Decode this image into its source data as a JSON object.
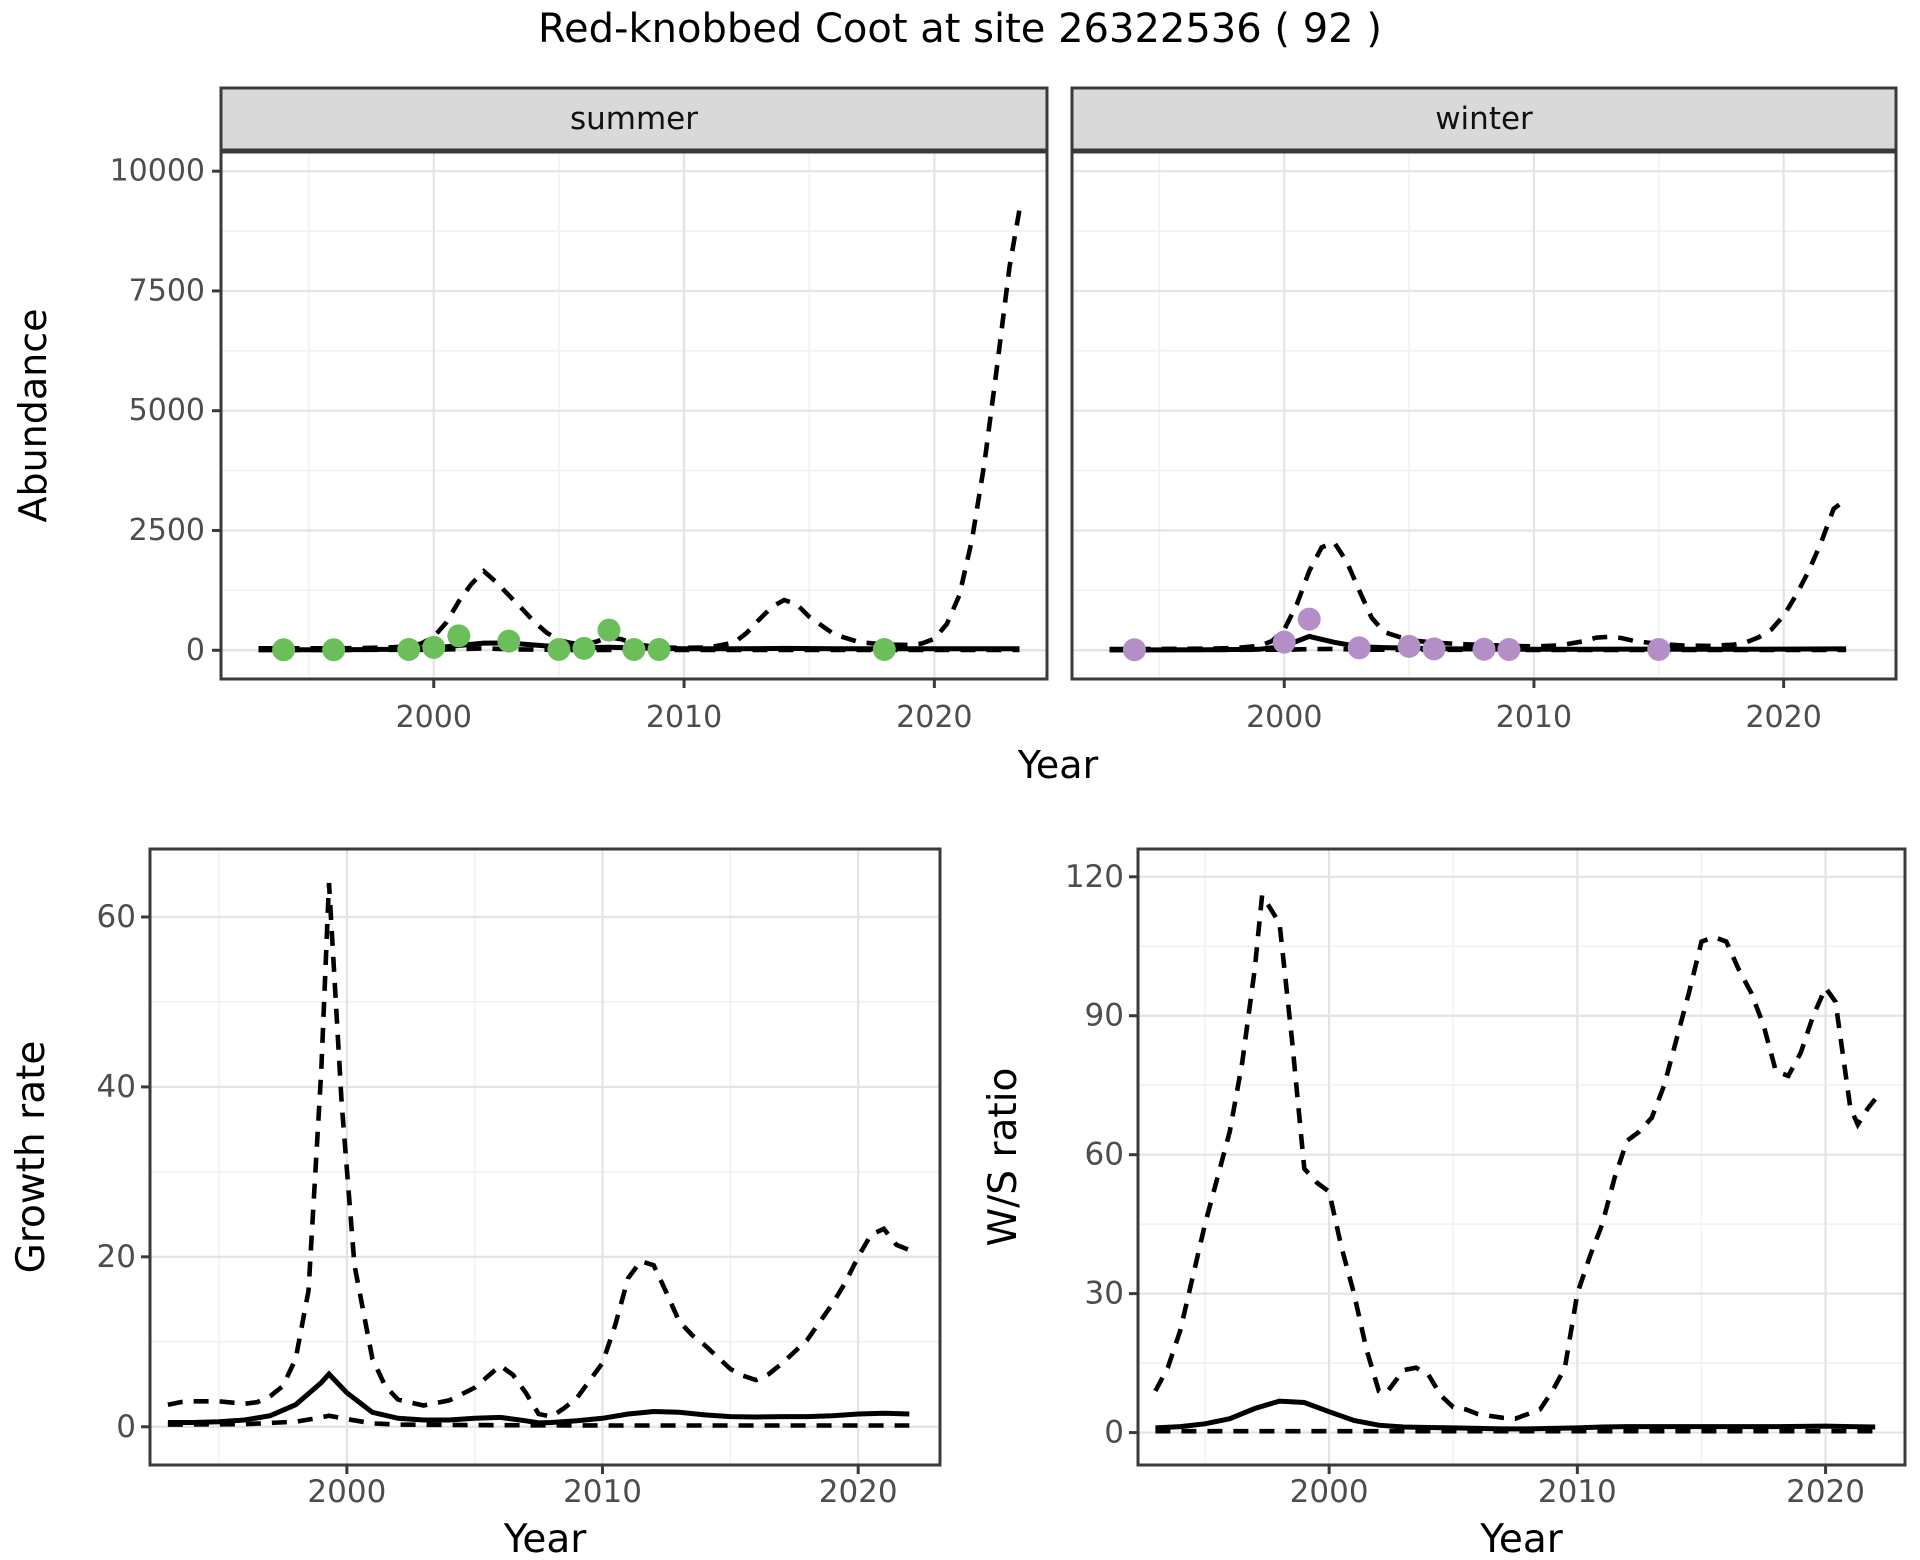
{
  "title": "Red-knobbed Coot at site 26322536 ( 92 )",
  "colors": {
    "summer_point": "#6CBE5A",
    "winter_point": "#B48EC7",
    "line": "#000000",
    "strip_bg": "#D9D9D9",
    "panel_border": "#3A3A3A",
    "grid_major": "#E3E3E3",
    "grid_minor": "#F1F1F1",
    "tick_label": "#4D4D4D",
    "axis_title": "#000000"
  },
  "chart_data": [
    {
      "type": "line",
      "title": "Abundance by season",
      "xlabel": "Year",
      "ylabel": "Abundance",
      "xlim": [
        1991.5,
        2024.5
      ],
      "ylim": [
        -600,
        10400
      ],
      "xticks": [
        2000,
        2010,
        2020
      ],
      "xminor": [
        1995,
        2005,
        2015
      ],
      "yticks": [
        0,
        2500,
        5000,
        7500,
        10000
      ],
      "yminor": [
        1250,
        3750,
        6250,
        8750
      ],
      "grid": true,
      "legend": "none",
      "facets": [
        {
          "label": "summer",
          "series": [
            {
              "name": "upper_ci",
              "style": "dashed",
              "x": [
                1993,
                1994,
                1995,
                1996,
                1997,
                1998,
                1999,
                1999.5,
                2000,
                2000.5,
                2001,
                2001.5,
                2002,
                2002.5,
                2003,
                2003.5,
                2004,
                2004.5,
                2005,
                2005.5,
                2006,
                2006.5,
                2007,
                2007.5,
                2008,
                2009,
                2010,
                2011,
                2012,
                2012.5,
                2013,
                2013.5,
                2014,
                2014.5,
                2015,
                2016,
                2017,
                2018,
                2019,
                2019.5,
                2020,
                2020.5,
                2021,
                2021.5,
                2022,
                2022.5,
                2023,
                2023.4
              ],
              "y": [
                40,
                40,
                40,
                40,
                45,
                55,
                80,
                140,
                280,
                580,
                1020,
                1380,
                1650,
                1420,
                1150,
                880,
                600,
                370,
                210,
                150,
                130,
                180,
                270,
                230,
                130,
                60,
                50,
                60,
                160,
                360,
                640,
                900,
                1050,
                960,
                700,
                330,
                170,
                120,
                110,
                140,
                240,
                550,
                1150,
                2300,
                3900,
                5900,
                8000,
                9200
              ]
            },
            {
              "name": "estimate",
              "style": "solid",
              "x": [
                1993,
                1995,
                1997,
                1999,
                2000,
                2001,
                2002,
                2003,
                2004,
                2005,
                2006,
                2007,
                2008,
                2009,
                2010,
                2012,
                2014,
                2016,
                2018,
                2020,
                2022,
                2023.4
              ],
              "y": [
                12,
                12,
                14,
                22,
                45,
                100,
                150,
                152,
                110,
                70,
                55,
                62,
                50,
                38,
                32,
                30,
                38,
                33,
                30,
                30,
                32,
                33
              ]
            },
            {
              "name": "lower_ci",
              "style": "dashed",
              "x": [
                1993,
                2000,
                2001.5,
                2002,
                2003,
                2005,
                2010,
                2016,
                2023.4
              ],
              "y": [
                5,
                10,
                30,
                38,
                20,
                8,
                5,
                5,
                5
              ]
            }
          ],
          "points": {
            "name": "summer_observations",
            "color_key": "summer_point",
            "x": [
              1994,
              1996,
              1999,
              2000,
              2001,
              2003,
              2005,
              2006,
              2007,
              2008,
              2009,
              2018
            ],
            "y": [
              10,
              10,
              15,
              60,
              300,
              190,
              15,
              40,
              420,
              15,
              15,
              15
            ]
          }
        },
        {
          "label": "winter",
          "series": [
            {
              "name": "upper_ci",
              "style": "dashed",
              "x": [
                1993,
                1994,
                1995,
                1996,
                1997,
                1998,
                1999,
                1999.5,
                2000,
                2000.5,
                2001,
                2001.5,
                2002,
                2002.5,
                2003,
                2003.5,
                2004,
                2005,
                2006,
                2007,
                2008,
                2009,
                2010,
                2011,
                2012,
                2012.5,
                2013,
                2013.5,
                2014,
                2015,
                2016,
                2017,
                2018,
                2018.5,
                2019,
                2019.5,
                2020,
                2020.5,
                2021,
                2021.5,
                2022,
                2022.5
              ],
              "y": [
                25,
                25,
                28,
                30,
                35,
                45,
                90,
                190,
                430,
                950,
                1650,
                2150,
                2250,
                1850,
                1250,
                680,
                380,
                210,
                160,
                130,
                110,
                90,
                80,
                100,
                190,
                265,
                280,
                255,
                195,
                130,
                100,
                90,
                115,
                165,
                270,
                430,
                720,
                1150,
                1650,
                2250,
                2950,
                3150
              ]
            },
            {
              "name": "estimate",
              "style": "solid",
              "x": [
                1993,
                1995,
                1997,
                1999,
                2000,
                2001,
                2002,
                2003,
                2004,
                2005,
                2006,
                2008,
                2010,
                2012,
                2014,
                2016,
                2018,
                2020,
                2022,
                2022.5
              ],
              "y": [
                8,
                8,
                10,
                20,
                85,
                290,
                165,
                75,
                55,
                45,
                35,
                25,
                20,
                22,
                25,
                22,
                22,
                25,
                28,
                28
              ]
            },
            {
              "name": "lower_ci",
              "style": "dashed",
              "x": [
                1993,
                2000,
                2001,
                2002,
                2003,
                2010,
                2022.5
              ],
              "y": [
                5,
                12,
                25,
                28,
                12,
                5,
                5
              ]
            }
          ],
          "points": {
            "name": "winter_observations",
            "color_key": "winter_point",
            "x": [
              1994,
              2000,
              2001,
              2003,
              2005,
              2006,
              2008,
              2009,
              2015
            ],
            "y": [
              10,
              170,
              650,
              50,
              80,
              30,
              20,
              15,
              15
            ]
          }
        }
      ]
    },
    {
      "type": "line",
      "title": "Growth rate",
      "xlabel": "Year",
      "ylabel": "Growth rate",
      "xlim": [
        1992.3,
        2023.2
      ],
      "ylim": [
        -4.5,
        68
      ],
      "xticks": [
        2000,
        2010,
        2020
      ],
      "xminor": [
        1995,
        2005,
        2015
      ],
      "yticks": [
        0,
        20,
        40,
        60
      ],
      "yminor": [
        10,
        30,
        50
      ],
      "grid": true,
      "legend": "none",
      "series": [
        {
          "name": "upper_ci",
          "style": "dashed",
          "x": [
            1993,
            1993.5,
            1994,
            1995,
            1996,
            1996.5,
            1997,
            1997.5,
            1998,
            1998.5,
            1999,
            1999.3,
            1999.8,
            2000.3,
            2001,
            2001.5,
            2002,
            2003,
            2004,
            2005,
            2005.5,
            2006,
            2006.5,
            2007,
            2007.5,
            2008,
            2008.5,
            2009,
            2010,
            2010.5,
            2011,
            2011.5,
            2012,
            2012.5,
            2013,
            2013.5,
            2014,
            2015,
            2015.5,
            2016,
            2016.5,
            2017,
            2018,
            2019,
            2019.5,
            2020,
            2020.5,
            2021,
            2021.5,
            2022
          ],
          "y": [
            2.6,
            2.9,
            3.0,
            3.0,
            2.7,
            2.9,
            3.6,
            4.8,
            8,
            16,
            42,
            64,
            38,
            19,
            8,
            4.8,
            3.2,
            2.5,
            3.1,
            4.6,
            5.9,
            7.2,
            6.1,
            4.0,
            1.5,
            1.2,
            2.2,
            3.4,
            7.5,
            12,
            17.5,
            19.5,
            19,
            15.8,
            12.4,
            10.8,
            9.6,
            6.8,
            6,
            5.5,
            6.2,
            7.4,
            10.2,
            14.5,
            17,
            20,
            22.6,
            23.3,
            21.4,
            20.8
          ]
        },
        {
          "name": "estimate",
          "style": "solid",
          "x": [
            1993,
            1994,
            1995,
            1996,
            1997,
            1998,
            1999,
            1999.3,
            2000,
            2001,
            2002,
            2003,
            2004,
            2005,
            2006,
            2007,
            2007.5,
            2008,
            2009,
            2010,
            2011,
            2012,
            2013,
            2014,
            2015,
            2016,
            2017,
            2018,
            2019,
            2020,
            2021,
            2022
          ],
          "y": [
            0.5,
            0.5,
            0.6,
            0.8,
            1.3,
            2.6,
            5.2,
            6.2,
            4.0,
            1.7,
            1.0,
            0.8,
            0.8,
            1.0,
            1.1,
            0.7,
            0.45,
            0.5,
            0.7,
            1.0,
            1.5,
            1.8,
            1.7,
            1.4,
            1.2,
            1.15,
            1.2,
            1.2,
            1.3,
            1.5,
            1.6,
            1.5
          ]
        },
        {
          "name": "lower_ci",
          "style": "dashed",
          "x": [
            1993,
            1996,
            1998,
            1999,
            1999.3,
            2000,
            2001,
            2002,
            2005,
            2010,
            2015,
            2020,
            2022
          ],
          "y": [
            0.25,
            0.3,
            0.6,
            1.1,
            1.3,
            0.9,
            0.4,
            0.25,
            0.2,
            0.15,
            0.15,
            0.15,
            0.15
          ]
        }
      ]
    },
    {
      "type": "line",
      "title": "W/S ratio",
      "xlabel": "Year",
      "ylabel": "W/S ratio",
      "xlim": [
        1992.3,
        2023.2
      ],
      "ylim": [
        -7,
        126
      ],
      "xticks": [
        2000,
        2010,
        2020
      ],
      "xminor": [
        1995,
        2005,
        2015
      ],
      "yticks": [
        0,
        30,
        60,
        90,
        120
      ],
      "yminor": [
        15,
        45,
        75,
        105
      ],
      "grid": true,
      "legend": "none",
      "series": [
        {
          "name": "upper_ci",
          "style": "dashed",
          "x": [
            1993,
            1993.5,
            1994,
            1995,
            1996,
            1996.5,
            1997,
            1997.3,
            1998,
            1998.5,
            1999,
            1999.5,
            2000,
            2000.5,
            2001,
            2001.5,
            2002,
            2002.3,
            2003,
            2003.5,
            2004,
            2004.5,
            2005,
            2005.5,
            2006,
            2007,
            2007.5,
            2008,
            2008.5,
            2009,
            2009.5,
            2010,
            2010.5,
            2011,
            2011.5,
            2012,
            2012.5,
            2013,
            2013.5,
            2014,
            2014.5,
            2015,
            2015.5,
            2016,
            2016.5,
            2017,
            2017.5,
            2018,
            2018.5,
            2019,
            2019.5,
            2020,
            2020.4,
            2021,
            2021.3,
            2021.7,
            2022
          ],
          "y": [
            9,
            14,
            22,
            45,
            65,
            80,
            100,
            116,
            110,
            85,
            57,
            54,
            52,
            40,
            30,
            18,
            9,
            8.5,
            13.5,
            14,
            12.5,
            8,
            5.5,
            5,
            4,
            3.2,
            3,
            4,
            5,
            9,
            14,
            30,
            38,
            45,
            55,
            63,
            65,
            68,
            75,
            85,
            95,
            106,
            107,
            106,
            100,
            95,
            88,
            78,
            77,
            82,
            90,
            96,
            93,
            70,
            66.5,
            70,
            72
          ]
        },
        {
          "name": "estimate",
          "style": "solid",
          "x": [
            1993,
            1994,
            1995,
            1996,
            1997,
            1998,
            1999,
            2000,
            2001,
            2002,
            2003,
            2004,
            2005,
            2006,
            2007,
            2008,
            2009,
            2010,
            2011,
            2012,
            2014,
            2016,
            2018,
            2020,
            2021,
            2022
          ],
          "y": [
            1,
            1.3,
            1.9,
            3,
            5.2,
            6.8,
            6.5,
            4.5,
            2.6,
            1.6,
            1.2,
            1.1,
            1.0,
            0.9,
            0.8,
            0.8,
            0.9,
            1.0,
            1.2,
            1.3,
            1.3,
            1.3,
            1.3,
            1.4,
            1.3,
            1.2
          ]
        },
        {
          "name": "lower_ci",
          "style": "dashed",
          "x": [
            1993,
            2000,
            2010,
            2022
          ],
          "y": [
            0.3,
            0.3,
            0.3,
            0.3
          ]
        }
      ]
    }
  ]
}
